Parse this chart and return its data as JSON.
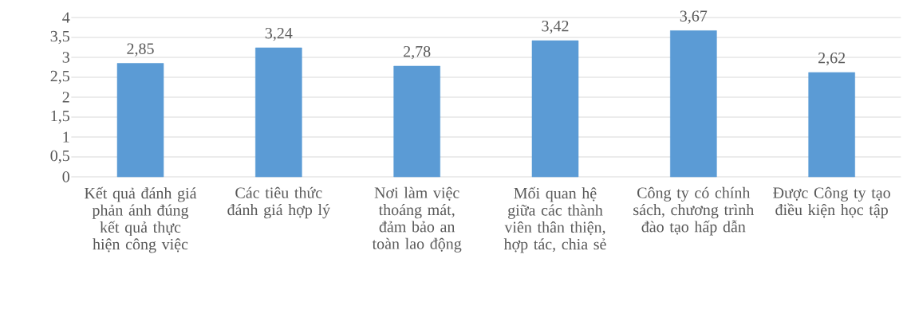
{
  "chart_data": {
    "type": "bar",
    "categories": [
      "Kết quả đánh giá phản ánh đúng kết quả thực hiện công việc",
      "Các tiêu thức đánh giá hợp lý",
      "Nơi làm việc thoáng mát, đảm bảo an toàn lao động",
      "Mối quan hệ giữa các thành viên thân thiện, hợp tác, chia sẻ",
      "Công ty có chính sách, chương trình đào tạo hấp dẫn",
      "Được Công ty tạo điều kiện học tập"
    ],
    "values": [
      2.85,
      3.24,
      2.78,
      3.42,
      3.67,
      2.62
    ],
    "value_labels": [
      "2,85",
      "3,24",
      "2,78",
      "3,42",
      "3,67",
      "2,62"
    ],
    "color": "#5b9bd5",
    "ylim": [
      0,
      4
    ],
    "yticks": [
      0,
      {
        "value": 0.5,
        "label": "0,5"
      },
      1,
      {
        "value": 1.5,
        "label": "1,5"
      },
      2,
      {
        "value": 2.5,
        "label": "2,5"
      },
      3,
      {
        "value": 3.5,
        "label": "3,5"
      },
      4
    ],
    "grid": "y"
  }
}
